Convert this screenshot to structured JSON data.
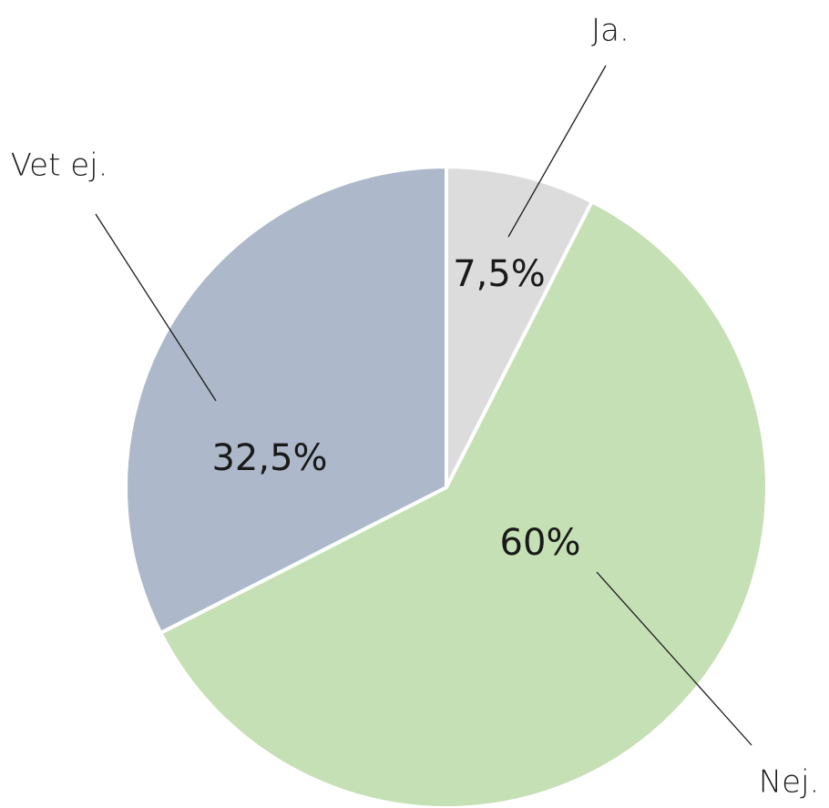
{
  "chart_data": {
    "type": "pie",
    "categories": [
      "Ja.",
      "Nej.",
      "Vet ej."
    ],
    "values": [
      7.5,
      60,
      32.5
    ],
    "value_labels": [
      "7,5%",
      "60%",
      "32,5%"
    ],
    "colors": [
      "#dcdcdc",
      "#c5e0b4",
      "#adb9ca"
    ]
  }
}
